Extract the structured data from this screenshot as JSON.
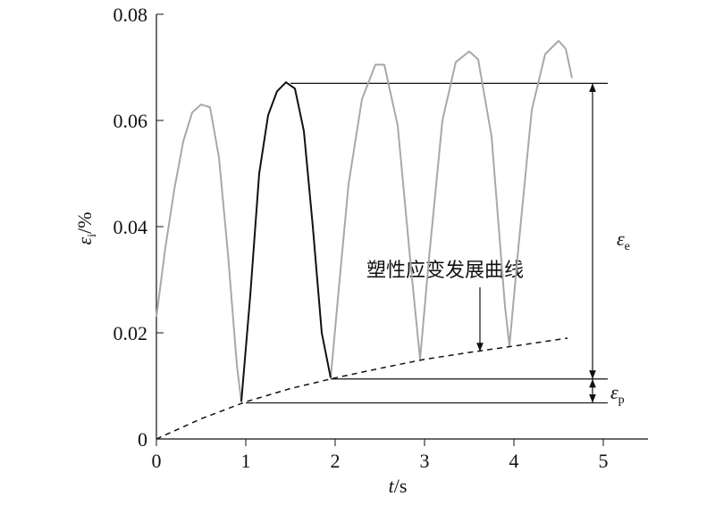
{
  "chart_data": {
    "type": "line",
    "xlabel": {
      "symbol": "t",
      "unit": "/s"
    },
    "ylabel": {
      "symbol": "ε",
      "subscript": "i",
      "unit": "/%"
    },
    "xlim": [
      0,
      5.5
    ],
    "ylim": [
      0,
      0.08
    ],
    "xticks": [
      0,
      1,
      2,
      3,
      4,
      5
    ],
    "yticks": [
      0,
      0.02,
      0.04,
      0.06,
      0.08
    ],
    "series": [
      {
        "color": "#a8a8a8",
        "dashed": false,
        "x": [
          0,
          0.1,
          0.2,
          0.3,
          0.4,
          0.5,
          0.6,
          0.7,
          0.8,
          0.9,
          0.95,
          1.45,
          1.95,
          2.05,
          2.15,
          2.3,
          2.45,
          2.55,
          2.7,
          2.85,
          2.95,
          3.05,
          3.2,
          3.35,
          3.5,
          3.6,
          3.75,
          3.9,
          3.95,
          4.05,
          4.2,
          4.35,
          4.5,
          4.58,
          4.65
        ],
        "values": [
          0.023,
          0.036,
          0.047,
          0.056,
          0.0615,
          0.063,
          0.0625,
          0.053,
          0.035,
          0.014,
          0.007,
          null,
          0.0115,
          0.03,
          0.048,
          0.064,
          0.0705,
          0.0705,
          0.059,
          0.032,
          0.015,
          0.034,
          0.06,
          0.071,
          0.073,
          0.0715,
          0.057,
          0.025,
          0.0175,
          0.036,
          0.062,
          0.0725,
          0.075,
          0.0735,
          0.068
        ]
      },
      {
        "color": "#111111",
        "dashed": false,
        "x": [
          0.95,
          1.05,
          1.15,
          1.25,
          1.35,
          1.45,
          1.55,
          1.65,
          1.75,
          1.85,
          1.95
        ],
        "values": [
          0.007,
          0.027,
          0.05,
          0.061,
          0.0655,
          0.0672,
          0.066,
          0.058,
          0.04,
          0.02,
          0.0115
        ]
      },
      {
        "color": "#111111",
        "dashed": true,
        "x": [
          0,
          0.5,
          1,
          1.5,
          2,
          2.5,
          3,
          3.5,
          4,
          4.6
        ],
        "values": [
          0,
          0.0038,
          0.007,
          0.0095,
          0.0115,
          0.0133,
          0.015,
          0.0163,
          0.0175,
          0.019
        ]
      }
    ],
    "reference_lines": [
      {
        "y": 0.067,
        "x": [
          1.5,
          5.05
        ]
      },
      {
        "y": 0.0113,
        "x": [
          1.95,
          5.05
        ]
      },
      {
        "y": 0.0068,
        "x": [
          1.0,
          5.05
        ]
      }
    ],
    "dimensions": [
      {
        "x": 4.88,
        "from": 0.067,
        "to": 0.0113,
        "label": {
          "symbol": "ε",
          "subscript": "e"
        }
      },
      {
        "x": 4.88,
        "from": 0.0113,
        "to": 0.0068,
        "label": {
          "symbol": "ε",
          "subscript": "p"
        }
      }
    ],
    "callout": {
      "text": "塑性应变发展曲线",
      "x": 3.62,
      "y": 0.0165
    }
  }
}
